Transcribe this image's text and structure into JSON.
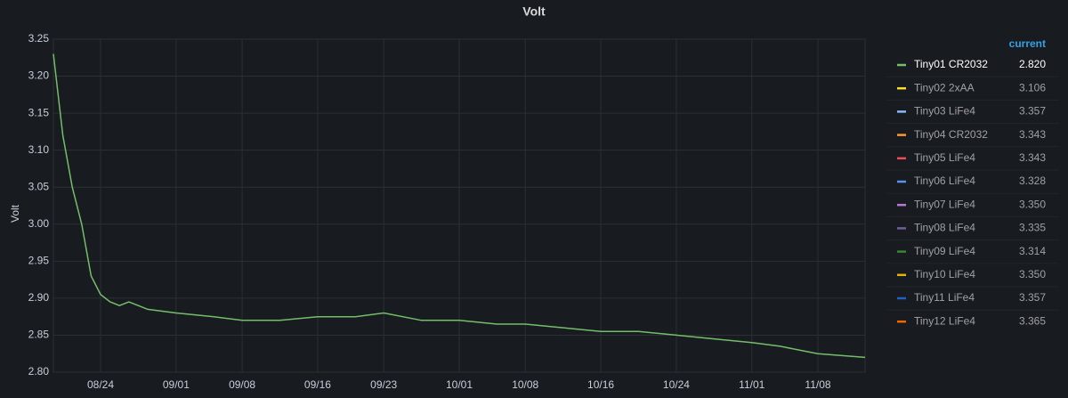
{
  "chart_data": {
    "type": "line",
    "title": "Volt",
    "y_label": "Volt",
    "xlim": [
      "08/19",
      "11/13"
    ],
    "xticks": [
      "08/24",
      "09/01",
      "09/08",
      "09/16",
      "09/23",
      "10/01",
      "10/08",
      "10/16",
      "10/24",
      "11/01",
      "11/08"
    ],
    "ylim": [
      2.8,
      3.25
    ],
    "yticks": [
      {
        "value": 2.8,
        "label": "2.80"
      },
      2.85,
      {
        "value": 2.9,
        "label": "2.90"
      },
      2.95,
      {
        "value": 3.0,
        "label": "3.00"
      },
      3.05,
      {
        "value": 3.1,
        "label": "3.10"
      },
      3.15,
      {
        "value": 3.2,
        "label": "3.20"
      },
      3.25
    ],
    "grid": true,
    "series": [
      {
        "name": "Tiny01 CR2032",
        "color": "#73bf69",
        "x": [
          "08/19",
          "08/20",
          "08/21",
          "08/22",
          "08/23",
          "08/24",
          "08/25",
          "08/26",
          "08/27",
          "08/28",
          "08/29",
          "09/01",
          "09/05",
          "09/08",
          "09/12",
          "09/16",
          "09/20",
          "09/23",
          "09/27",
          "10/01",
          "10/05",
          "10/08",
          "10/12",
          "10/16",
          "10/20",
          "10/24",
          "10/28",
          "11/01",
          "11/04",
          "11/06",
          "11/08",
          "11/13"
        ],
        "values": [
          3.23,
          3.12,
          3.05,
          3.0,
          2.93,
          2.905,
          2.895,
          2.89,
          2.895,
          2.89,
          2.885,
          2.88,
          2.875,
          2.87,
          2.87,
          2.875,
          2.875,
          2.88,
          2.87,
          2.87,
          2.865,
          2.865,
          2.86,
          2.855,
          2.855,
          2.85,
          2.845,
          2.84,
          2.835,
          2.83,
          2.825,
          2.82
        ]
      },
      {
        "name": "Tiny02 2xAA",
        "color": "#fade2a"
      },
      {
        "name": "Tiny03 LiFe4",
        "color": "#8ab8ff"
      },
      {
        "name": "Tiny04 CR2032",
        "color": "#ff9830"
      },
      {
        "name": "Tiny05 LiFe4",
        "color": "#f2495c"
      },
      {
        "name": "Tiny06 LiFe4",
        "color": "#5794f2"
      },
      {
        "name": "Tiny07 LiFe4",
        "color": "#b877d9"
      },
      {
        "name": "Tiny08 LiFe4",
        "color": "#705da0"
      },
      {
        "name": "Tiny09 LiFe4",
        "color": "#37872d"
      },
      {
        "name": "Tiny10 LiFe4",
        "color": "#e0b400"
      },
      {
        "name": "Tiny11 LiFe4",
        "color": "#1f60c4"
      },
      {
        "name": "Tiny12 LiFe4",
        "color": "#fa6400"
      }
    ],
    "legend_column": {
      "title": "current",
      "values": [
        2.82,
        3.106,
        3.357,
        3.343,
        3.343,
        3.328,
        3.35,
        3.335,
        3.314,
        3.35,
        3.357,
        3.365
      ],
      "value_labels": [
        "2.820",
        "3.106",
        "3.357",
        "3.343",
        "3.343",
        "3.328",
        "3.350",
        "3.335",
        "3.314",
        "3.350",
        "3.357",
        "3.365"
      ]
    }
  }
}
